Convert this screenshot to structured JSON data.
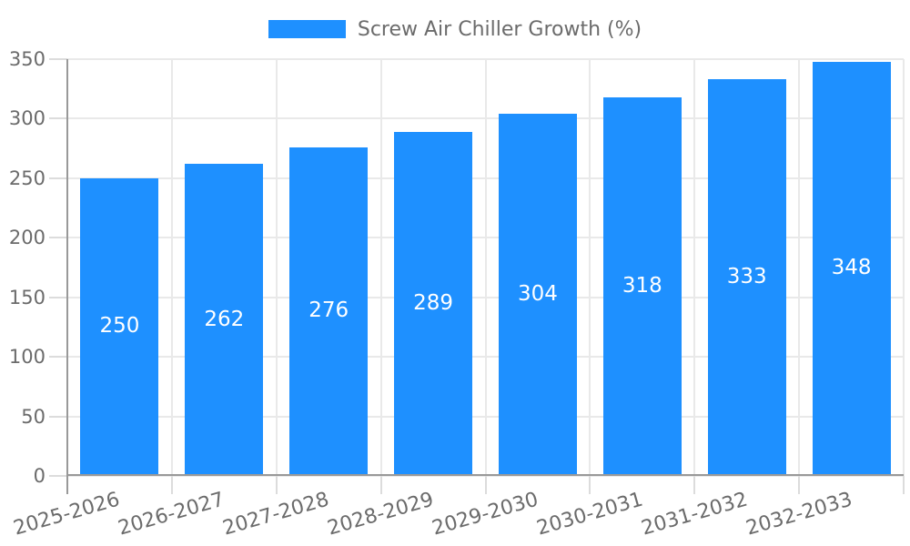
{
  "chart_data": {
    "type": "bar",
    "title": "Screw Air Chiller Growth (%)",
    "legend_position": "top-center",
    "categories": [
      "2025-2026",
      "2026-2027",
      "2027-2028",
      "2028-2029",
      "2029-2030",
      "2030-2031",
      "2031-2032",
      "2032-2033"
    ],
    "values": [
      250,
      262,
      276,
      289,
      304,
      318,
      333,
      348
    ],
    "xlabel": "",
    "ylabel": "",
    "ylim": [
      0,
      350
    ],
    "yticks": [
      0,
      50,
      100,
      150,
      200,
      250,
      300,
      350
    ],
    "grid": "on",
    "x_tick_label_rotation_deg": -16,
    "colors": {
      "bar": "#1e90ff",
      "bar_value_label": "#ffffff",
      "axis_text": "#6b6b6b",
      "gridline": "#e9e9e9",
      "axis_line": "#999999",
      "background": "#ffffff"
    }
  }
}
